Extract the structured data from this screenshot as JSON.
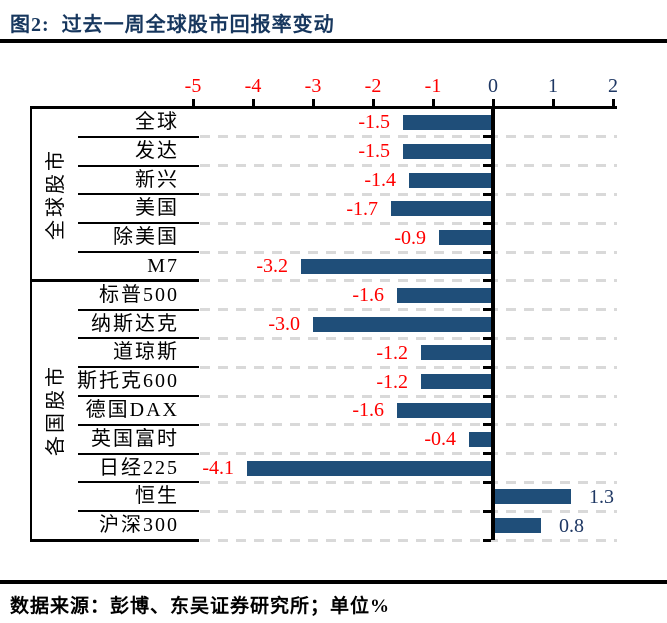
{
  "figure": {
    "title": "图2:  过去一周全球股市回报率变动",
    "source_note": "数据来源：彭博、东吴证券研究所；单位%"
  },
  "chart_data": {
    "type": "bar",
    "orientation": "horizontal",
    "title": "过去一周全球股市回报率变动",
    "unit": "%",
    "xlim": [
      -5,
      2
    ],
    "x_ticks": [
      -5,
      -4,
      -3,
      -2,
      -1,
      0,
      1,
      2
    ],
    "grid": "dashed horizontal row separators",
    "legend_position": "none",
    "value_labels": "outside end",
    "groups": [
      {
        "label": "全球股市",
        "categories": [
          "全球",
          "发达",
          "新兴",
          "美国",
          "除美国",
          "M7"
        ],
        "values": [
          -1.5,
          -1.5,
          -1.4,
          -1.7,
          -0.9,
          -3.2
        ],
        "value_labels": [
          "-1.5",
          "-1.5",
          "-1.4",
          "-1.7",
          "-0.9",
          "-3.2"
        ]
      },
      {
        "label": "各国股市",
        "categories": [
          "标普500",
          "纳斯达克",
          "道琼斯",
          "斯托克600",
          "德国DAX",
          "英国富时",
          "日经225",
          "恒生",
          "沪深300"
        ],
        "values": [
          -1.6,
          -3.0,
          -1.2,
          -1.2,
          -1.6,
          -0.4,
          -4.1,
          1.3,
          0.8
        ],
        "value_labels": [
          "-1.6",
          "-3.0",
          "-1.2",
          "-1.2",
          "-1.6",
          "-0.4",
          "-4.1",
          "1.3",
          "0.8"
        ]
      }
    ],
    "colors": {
      "bar": "#1F4E79",
      "negative_value_label": "#FF0000",
      "positive_value_label": "#1F3864",
      "negative_tick_label": "#FF0000",
      "positive_tick_label": "#1F3864",
      "title": "#17375E",
      "gridline": "#D9D9D9",
      "axis": "#000000"
    }
  }
}
